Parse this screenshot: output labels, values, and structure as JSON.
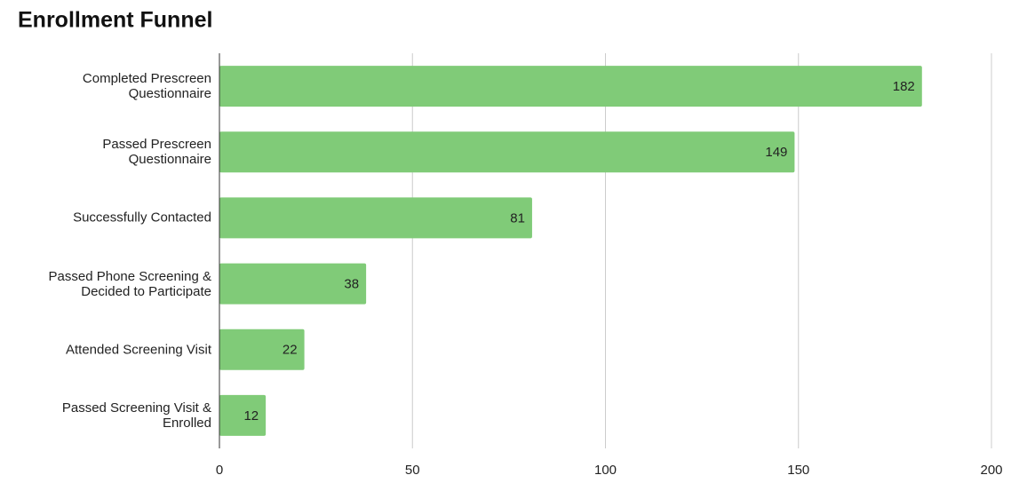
{
  "chart_data": {
    "type": "bar",
    "orientation": "horizontal",
    "title": "Enrollment Funnel",
    "categories": [
      "Completed Prescreen Questionnaire",
      "Passed Prescreen Questionnaire",
      "Successfully Contacted",
      "Passed Phone Screening & Decided to Participate",
      "Attended Screening Visit",
      "Passed Screening Visit & Enrolled"
    ],
    "values": [
      182,
      149,
      81,
      38,
      22,
      12
    ],
    "color": "#80cb78",
    "xlim": [
      0,
      200
    ],
    "xticks": [
      0,
      50,
      100,
      150,
      200
    ],
    "grid": true
  }
}
